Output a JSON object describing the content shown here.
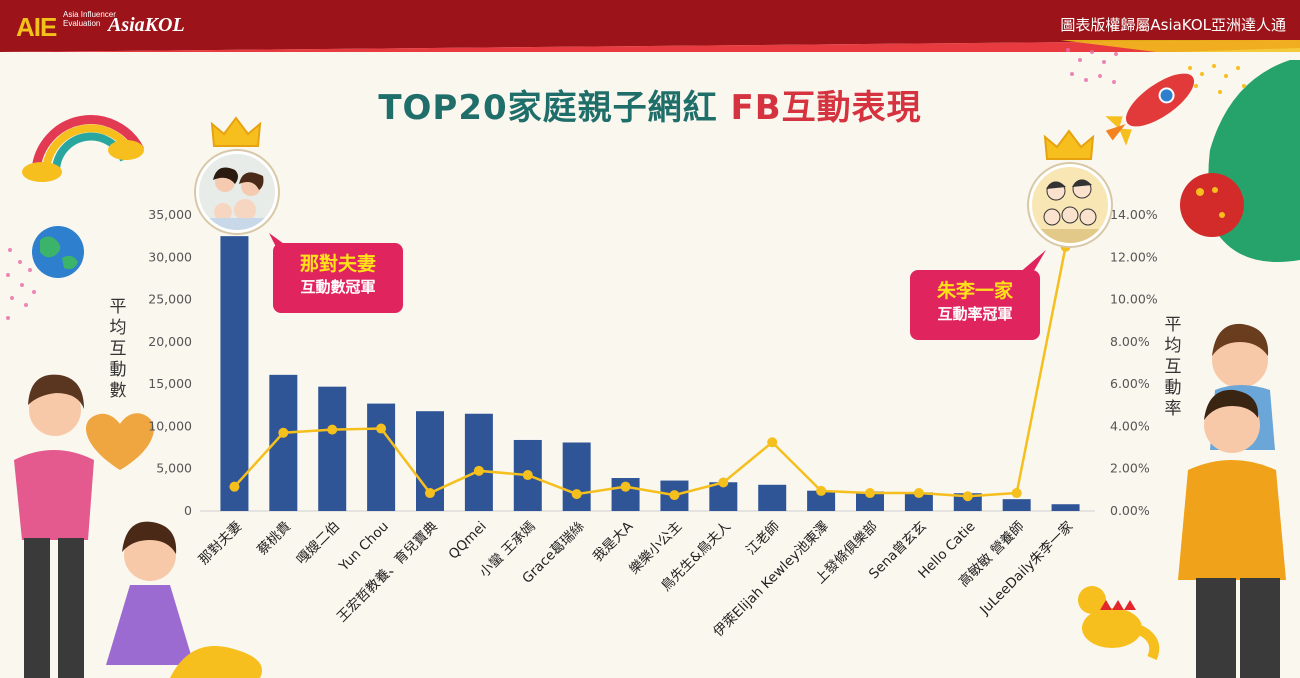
{
  "header": {
    "brand_aie": "AIE",
    "brand_sub": "Asia Influencer Evaluation",
    "brand_kol": "AsiaKOL",
    "copyright": "圖表版權歸屬AsiaKOL亞洲達人通"
  },
  "title_part1": "TOP20家庭親子網紅",
  "title_part2": "FB互動表現",
  "y_left_title": "平均互動數",
  "y_right_title": "平均互動率",
  "callout_left": {
    "name": "那對夫妻",
    "sub": "互動數冠軍"
  },
  "callout_right": {
    "name": "朱李一家",
    "sub": "互動率冠軍"
  },
  "colors": {
    "bar": "#2f5597",
    "line": "#f5bf1d",
    "accent": "#e0245e",
    "title_teal": "#1f6e6a",
    "title_red": "#d5333f"
  },
  "chart_data": {
    "type": "bar",
    "categories": [
      "那對夫妻",
      "蔡桃貴",
      "嘎嫂二伯",
      "Yun Chou",
      "王宏哲教養、育兒寶典",
      "QQmei",
      "小蠻 王承嫣",
      "Grace葛瑞絲",
      "我是大A",
      "樂樂小公主",
      "鳥先生&鳥夫人",
      "江老師",
      "伊萊Elijah Kewley池東澤",
      "上發條俱樂部",
      "Sena曾玄玄",
      "Hello Catie",
      "高敏敏 營養師",
      "JuLeeDaily朱李一家"
    ],
    "series": [
      {
        "name": "平均互動數",
        "axis": "left",
        "type": "bar",
        "values": [
          32500,
          16100,
          14700,
          12700,
          11800,
          11500,
          8400,
          8100,
          3900,
          3600,
          3400,
          3100,
          2400,
          2300,
          2200,
          2100,
          1400,
          800
        ]
      },
      {
        "name": "平均互動率",
        "axis": "right",
        "type": "line",
        "values": [
          1.15,
          3.7,
          3.85,
          3.9,
          0.85,
          1.9,
          1.7,
          0.8,
          1.15,
          0.75,
          1.35,
          3.25,
          0.95,
          0.85,
          0.85,
          0.7,
          0.85,
          12.5
        ]
      }
    ],
    "y_left": {
      "ticks": [
        "0",
        "5,000",
        "10,000",
        "15,000",
        "20,000",
        "25,000",
        "30,000",
        "35,000"
      ],
      "ylim": [
        0,
        35000
      ]
    },
    "y_right": {
      "ticks": [
        "0.00%",
        "2.00%",
        "4.00%",
        "6.00%",
        "8.00%",
        "10.00%",
        "12.00%",
        "14.00%"
      ],
      "ylim": [
        0,
        14
      ]
    }
  }
}
